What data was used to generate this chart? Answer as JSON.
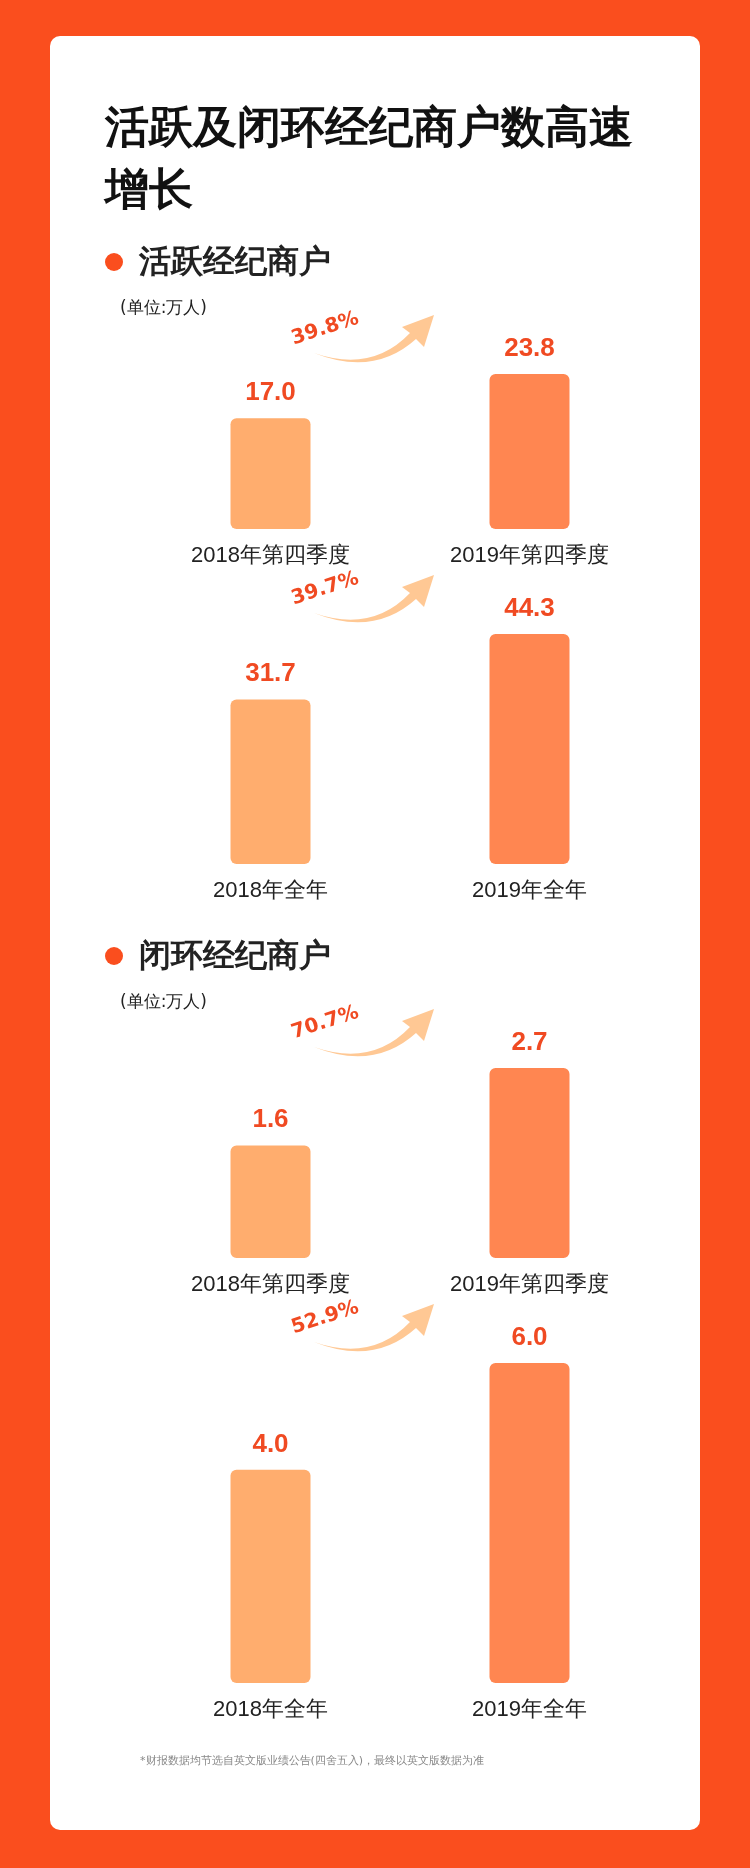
{
  "chart_data": [
    {
      "type": "bar",
      "title": "活跃及闭环经纪商户数高速增长",
      "subtitle": "活跃经纪商户",
      "annotations": [
        "(单位:万人)",
        "39.8%"
      ],
      "categories": [
        "2018年第四季度",
        "2019年第四季度"
      ],
      "values": [
        17.0,
        23.8
      ],
      "value_labels": [
        "17.0",
        "23.8"
      ],
      "colors": [
        "#ffad6e",
        "#ff8651"
      ]
    },
    {
      "type": "bar",
      "annotations": [
        "39.7%"
      ],
      "categories": [
        "2018年全年",
        "2019年全年"
      ],
      "values": [
        31.7,
        44.3
      ],
      "value_labels": [
        "31.7",
        "44.3"
      ],
      "colors": [
        "#ffad6e",
        "#ff8651"
      ]
    },
    {
      "type": "bar",
      "subtitle": "闭环经纪商户",
      "annotations": [
        "(单位:万人)",
        "70.7%"
      ],
      "categories": [
        "2018年第四季度",
        "2019年第四季度"
      ],
      "values": [
        1.6,
        2.7
      ],
      "value_labels": [
        "1.6",
        "2.7"
      ],
      "colors": [
        "#ffad6e",
        "#ff8651"
      ]
    },
    {
      "type": "bar",
      "annotations": [
        "52.9%",
        "*财报数据均节选自英文版业绩公告(四舍五入)，最终以英文版数据为准"
      ],
      "categories": [
        "2018年全年",
        "2019年全年"
      ],
      "values": [
        4.0,
        6.0
      ],
      "value_labels": [
        "4.0",
        "6.0"
      ],
      "colors": [
        "#ffad6e",
        "#ff8651"
      ]
    }
  ]
}
